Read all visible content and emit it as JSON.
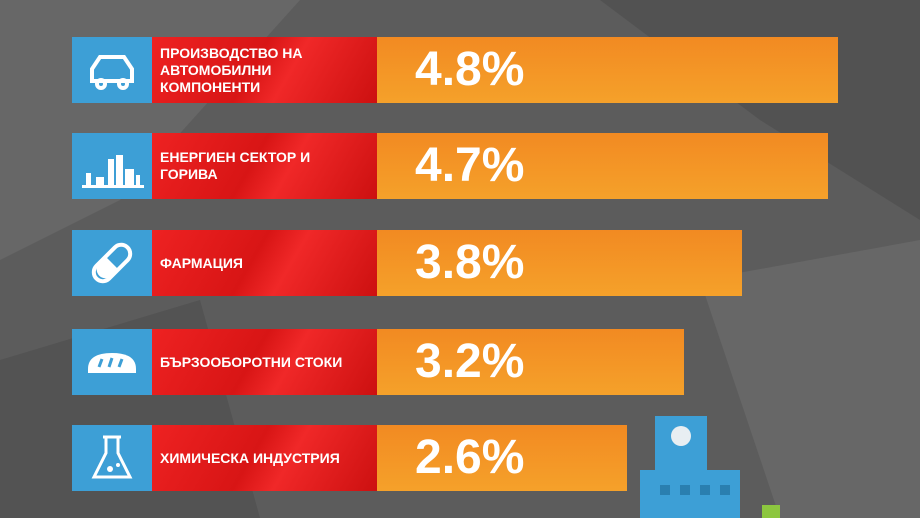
{
  "chart_data": {
    "type": "bar",
    "categories": [
      "ПРОИЗВОДСТВО НА\nАВТОМОБИЛНИ\nКОМПОНЕНТИ",
      "ЕНЕРГИЕН СЕКТОР И\nГОРИВА",
      "ФАРМАЦИЯ",
      "БЪРЗООБОРОТНИ СТОКИ",
      "ХИМИЧЕСКА ИНДУСТРИЯ"
    ],
    "values": [
      4.8,
      4.7,
      3.8,
      3.2,
      2.6
    ],
    "value_labels": [
      "4.8%",
      "4.7%",
      "3.8%",
      "3.2%",
      "2.6%"
    ],
    "color": "#f5a12a",
    "xlim": [
      0,
      5
    ]
  }
}
